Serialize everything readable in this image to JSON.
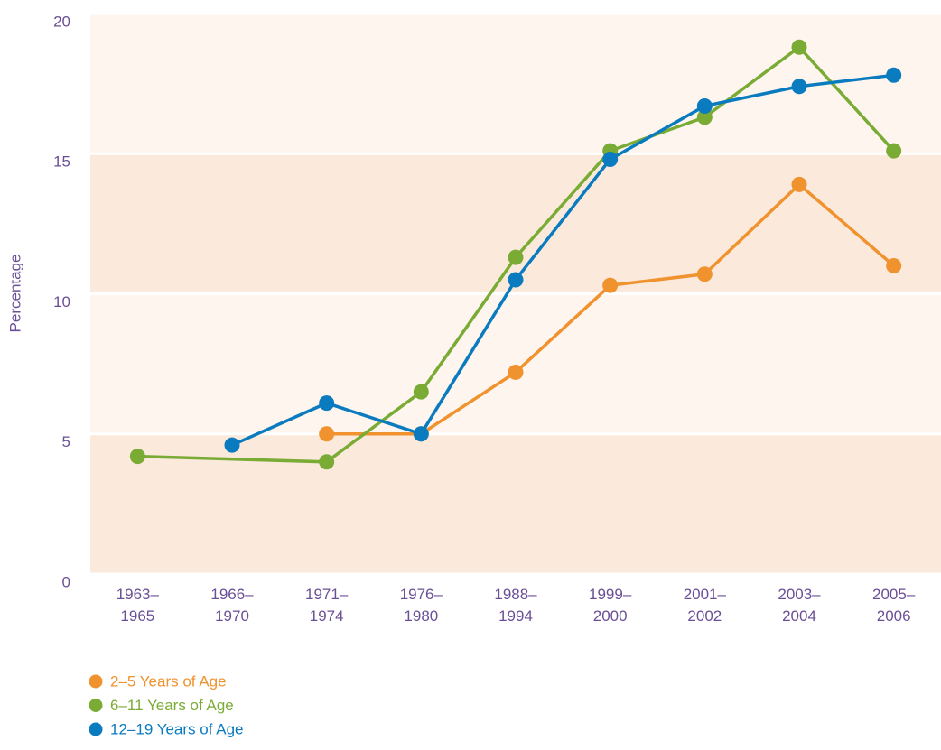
{
  "chart_data": {
    "type": "line",
    "ylabel": "Percentage",
    "categories": [
      "1963–1965",
      "1966–1970",
      "1971–1974",
      "1976–1980",
      "1988–1994",
      "1999–2000",
      "2001–2002",
      "2003–2004",
      "2005–2006"
    ],
    "series": [
      {
        "name": "2–5 Years of Age",
        "color": "#f0922e",
        "values": [
          null,
          null,
          5,
          5,
          7.2,
          10.3,
          10.7,
          13.9,
          11.0
        ]
      },
      {
        "name": "6–11 Years of Age",
        "color": "#7aab35",
        "values": [
          4.2,
          null,
          4.0,
          6.5,
          11.3,
          15.1,
          16.3,
          18.8,
          15.1
        ]
      },
      {
        "name": "12–19 Years of Age",
        "color": "#0a7bbf",
        "values": [
          null,
          4.6,
          6.1,
          5.0,
          10.5,
          14.8,
          16.7,
          17.4,
          17.8
        ]
      }
    ],
    "connect_nulls": true,
    "ylim": [
      0,
      20
    ],
    "yticks": [
      0,
      5,
      10,
      15,
      20
    ],
    "band_colors": [
      "#fbeadc",
      "#fdf5ee"
    ]
  }
}
